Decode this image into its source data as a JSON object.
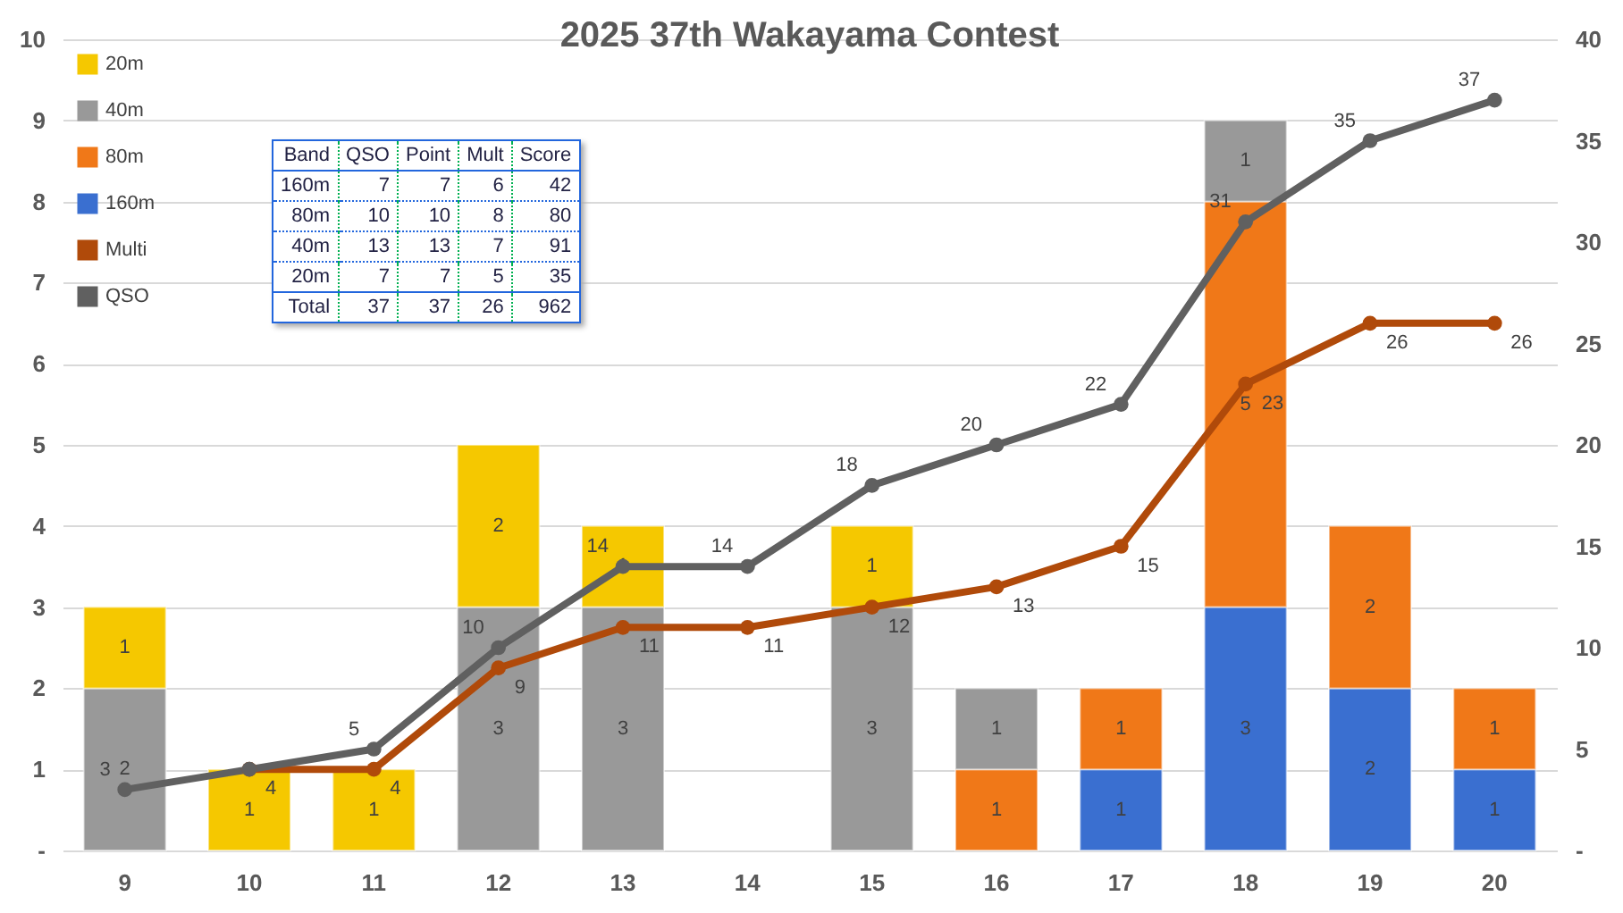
{
  "chart_data": {
    "type": "bar",
    "title": "2025 37th Wakayama Contest",
    "stacked": true,
    "data_labels": true,
    "grid": "y",
    "legend": "top left",
    "marker": "circle",
    "categories": [
      "9",
      "10",
      "11",
      "12",
      "13",
      "14",
      "15",
      "16",
      "17",
      "18",
      "19",
      "20"
    ],
    "series": [
      {
        "name": "160m",
        "color": "#3a6fd0",
        "values": [
          null,
          null,
          null,
          null,
          null,
          null,
          null,
          null,
          1,
          3,
          2,
          1
        ]
      },
      {
        "name": "80m",
        "color": "#f07818",
        "values": [
          null,
          null,
          null,
          null,
          null,
          null,
          null,
          1,
          1,
          5,
          2,
          1
        ]
      },
      {
        "name": "40m",
        "color": "#999999",
        "values": [
          2,
          null,
          null,
          3,
          3,
          null,
          3,
          1,
          null,
          1,
          null,
          null
        ]
      },
      {
        "name": "20m",
        "color": "#f5c800",
        "values": [
          1,
          1,
          1,
          2,
          1,
          null,
          1,
          null,
          null,
          null,
          null,
          null
        ]
      },
      {
        "name": "Multi",
        "type": "line",
        "axis": "y2",
        "color": "#b04a0a",
        "values": [
          null,
          4,
          4,
          9,
          11,
          11,
          12,
          13,
          15,
          23,
          26,
          26
        ]
      },
      {
        "name": "QSO",
        "type": "line",
        "axis": "y2",
        "color": "#606060",
        "values": [
          3,
          4,
          5,
          10,
          14,
          14,
          18,
          20,
          22,
          31,
          35,
          37
        ],
        "value_labels": [
          "3",
          null,
          "5",
          "10",
          "14",
          "14",
          "18",
          "20",
          "22",
          "31",
          "35",
          "37"
        ]
      }
    ],
    "ylim": [
      0,
      10
    ],
    "yticks": [
      {
        "value": 0,
        "label": "-"
      },
      1,
      2,
      3,
      4,
      5,
      6,
      7,
      8,
      9,
      10
    ],
    "y2lim": [
      0,
      40
    ],
    "y2ticks": [
      {
        "value": 0,
        "label": "-"
      },
      5,
      10,
      15,
      20,
      25,
      30,
      35,
      40
    ],
    "annotations": [
      "Band\tQSO\tPoint\tMult\tScore",
      "160m\t7\t7\t6\t42",
      "80m\t10\t10\t8\t80",
      "40m\t13\t13\t7\t91",
      "20m\t7\t7\t5\t35",
      "Total\t37\t37\t26\t962"
    ]
  }
}
